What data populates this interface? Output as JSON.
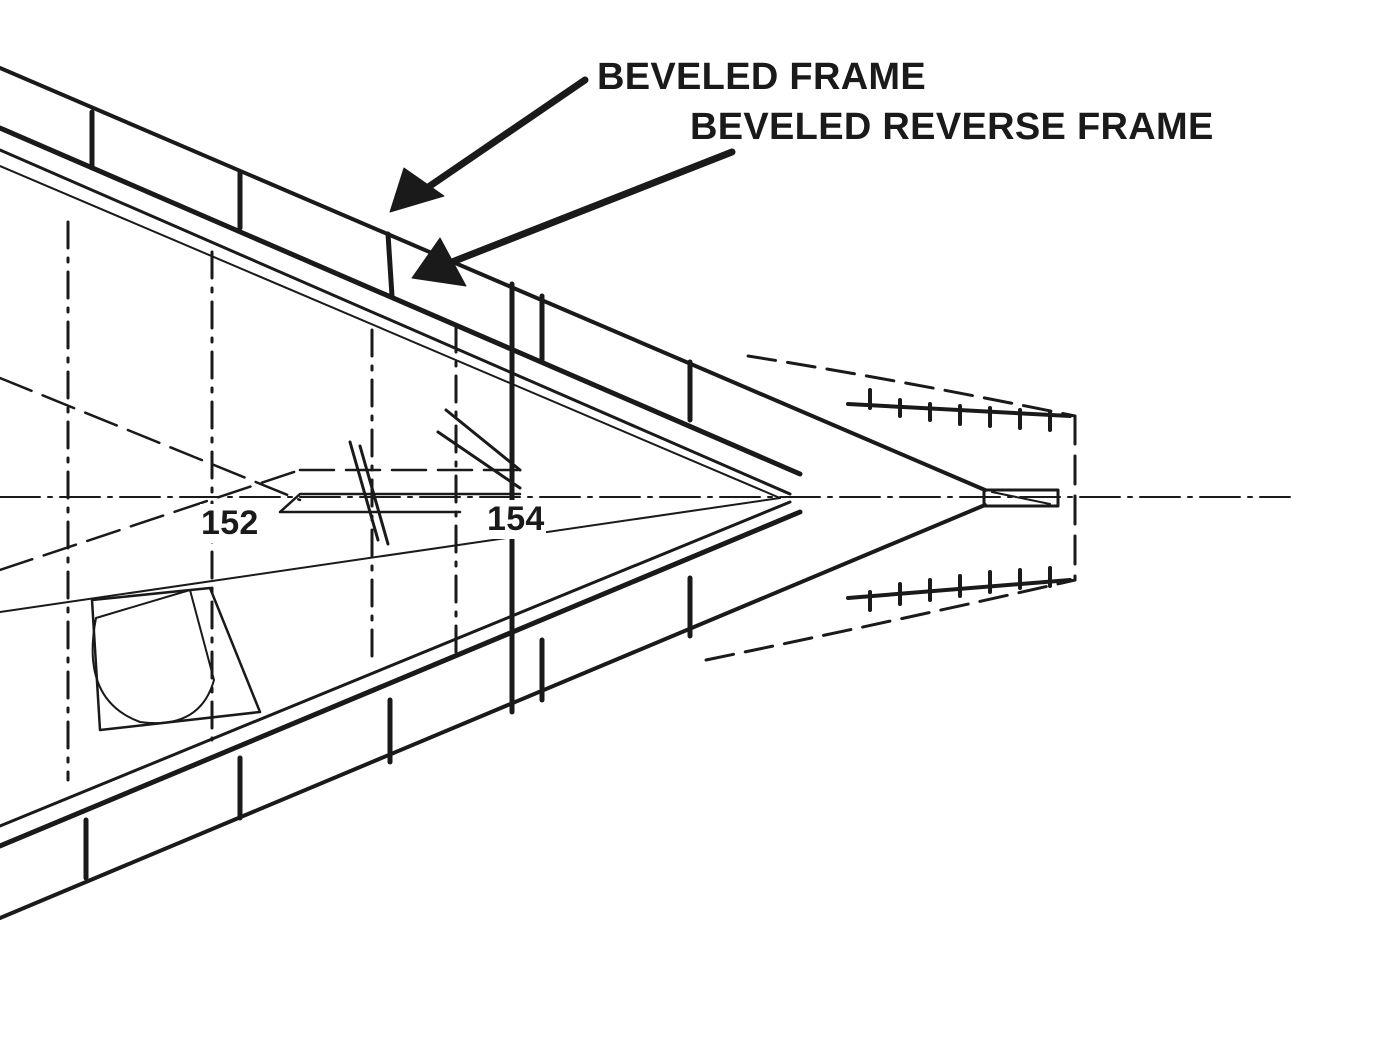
{
  "labels": {
    "beveled_frame": "BEVELED FRAME",
    "beveled_reverse_frame": "BEVELED REVERSE FRAME"
  },
  "stations": {
    "first": "152",
    "second": "154"
  },
  "colors": {
    "ink": "#1a1a1a",
    "paper": "#ffffff"
  }
}
